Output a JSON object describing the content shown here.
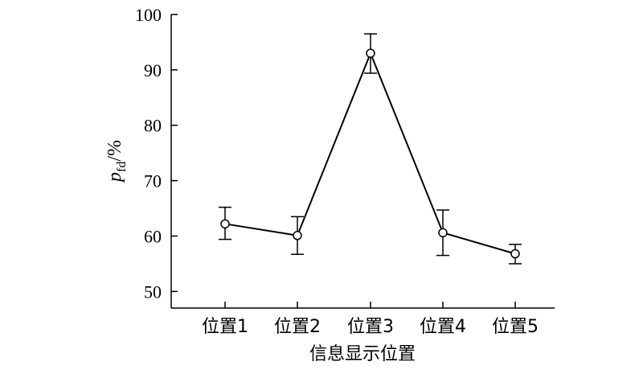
{
  "chart_data": {
    "type": "line",
    "title": "",
    "xlabel": "信息显示位置",
    "ylabel": {
      "var": "p",
      "sub": "fd",
      "unit": "/%"
    },
    "ylim": [
      47,
      100
    ],
    "yticks": [
      50,
      60,
      70,
      80,
      90,
      100
    ],
    "categories": [
      "位置1",
      "位置2",
      "位置3",
      "位置4",
      "位置5"
    ],
    "series": [
      {
        "values": [
          62.2,
          60.1,
          93.0,
          60.6,
          56.8
        ],
        "err_low": [
          59.4,
          56.7,
          89.4,
          56.5,
          55.0
        ],
        "err_high": [
          65.2,
          63.5,
          96.5,
          64.7,
          58.5
        ]
      }
    ],
    "grid": false,
    "legend": "none"
  }
}
